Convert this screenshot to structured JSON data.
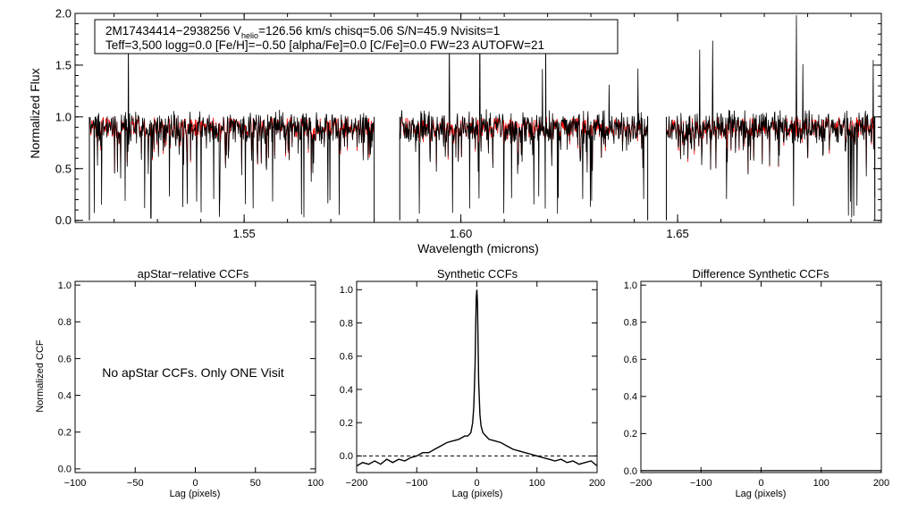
{
  "colors": {
    "observed": "#000000",
    "model": "#ff0000",
    "axis": "#000000",
    "background": "#ffffff"
  },
  "chart_data": [
    {
      "type": "line",
      "id": "spectrum",
      "xlabel": "Wavelength (microns)",
      "ylabel": "Normalized Flux",
      "xlim": [
        1.511,
        1.697
      ],
      "ylim": [
        -0.02,
        2.0
      ],
      "xticks": [
        1.55,
        1.6,
        1.65
      ],
      "xtick_labels": [
        "1.55",
        "1.60",
        "1.65"
      ],
      "yticks": [
        0.0,
        0.5,
        1.0,
        1.5,
        2.0
      ],
      "ytick_labels": [
        "0.0",
        "0.5",
        "1.0",
        "1.5",
        "2.0"
      ],
      "chips": [
        [
          1.5143,
          1.58
        ],
        [
          1.5859,
          1.6431
        ],
        [
          1.6474,
          1.6955
        ]
      ],
      "series": [
        {
          "name": "observed",
          "baseline": 0.9,
          "noise": 0.13
        },
        {
          "name": "model",
          "baseline": 0.9,
          "noise": 0.1
        }
      ],
      "info_line1_parts": {
        "star": "2M17434414−2938256",
        "v": "V",
        "v_sub": "helio",
        "rest": "=126.56 km/s  chisq=5.06  S/N=45.9  Nvisits=1"
      },
      "info_line2": "Teff=3,500 logg=0.0 [Fe/H]=−0.50 [alpha/Fe]=0.0 [C/Fe]=0.0 FW=23 AUTOFW=21"
    },
    {
      "type": "line",
      "id": "apstar_ccf",
      "title": "apStar−relative CCFs",
      "xlabel": "Lag (pixels)",
      "ylabel": "Normalized CCF",
      "xlim": [
        -100,
        100
      ],
      "ylim": [
        -0.02,
        1.02
      ],
      "xticks": [
        -100,
        -50,
        0,
        50,
        100
      ],
      "xtick_labels": [
        "−100",
        "−50",
        "0",
        "50",
        "100"
      ],
      "yticks": [
        0.0,
        0.2,
        0.4,
        0.6,
        0.8,
        1.0
      ],
      "ytick_labels": [
        "0.0",
        "0.2",
        "0.4",
        "0.6",
        "0.8",
        "1.0"
      ],
      "annotation": "No apStar CCFs.  Only ONE Visit"
    },
    {
      "type": "line",
      "id": "synthetic_ccf",
      "title": "Synthetic CCFs",
      "xlabel": "Lag (pixels)",
      "xlim": [
        -200,
        200
      ],
      "ylim": [
        -0.1,
        1.05
      ],
      "xticks": [
        -200,
        -100,
        0,
        100,
        200
      ],
      "xtick_labels": [
        "−200",
        "−100",
        "0",
        "100",
        "200"
      ],
      "yticks": [
        0.0,
        0.2,
        0.4,
        0.6,
        0.8,
        1.0
      ],
      "ytick_labels": [
        "0.0",
        "0.2",
        "0.4",
        "0.6",
        "0.8",
        "1.0"
      ],
      "reference_line": 0.0,
      "peak": {
        "x": 0,
        "y": 1.0
      },
      "x": [
        -200,
        -190,
        -180,
        -170,
        -160,
        -150,
        -140,
        -130,
        -120,
        -110,
        -100,
        -90,
        -80,
        -70,
        -60,
        -50,
        -40,
        -30,
        -20,
        -15,
        -10,
        -7,
        -5,
        -3,
        -2,
        -1,
        0,
        1,
        2,
        3,
        5,
        7,
        10,
        15,
        20,
        30,
        40,
        50,
        60,
        70,
        80,
        90,
        100,
        110,
        120,
        130,
        140,
        150,
        160,
        170,
        180,
        190,
        200
      ],
      "values": [
        -0.06,
        -0.04,
        -0.05,
        -0.03,
        -0.05,
        -0.02,
        -0.04,
        -0.02,
        -0.03,
        -0.01,
        0.0,
        0.02,
        0.02,
        0.04,
        0.06,
        0.08,
        0.09,
        0.1,
        0.12,
        0.12,
        0.14,
        0.2,
        0.3,
        0.55,
        0.78,
        0.95,
        1.0,
        0.92,
        0.7,
        0.45,
        0.25,
        0.18,
        0.14,
        0.12,
        0.1,
        0.09,
        0.08,
        0.06,
        0.04,
        0.03,
        0.02,
        0.01,
        0.0,
        -0.01,
        -0.02,
        -0.03,
        -0.02,
        -0.04,
        -0.03,
        -0.05,
        -0.04,
        -0.03,
        -0.06
      ]
    },
    {
      "type": "line",
      "id": "difference_ccf",
      "title": "Difference Synthetic CCFs",
      "xlabel": "Lag (pixels)",
      "xlim": [
        -200,
        200
      ],
      "ylim": [
        -0.01,
        1.02
      ],
      "xticks": [
        -200,
        -100,
        0,
        100,
        200
      ],
      "xtick_labels": [
        "−200",
        "−100",
        "0",
        "100",
        "200"
      ],
      "yticks": [
        0.0,
        0.2,
        0.4,
        0.6,
        0.8,
        1.0
      ],
      "ytick_labels": [
        "0.0",
        "0.2",
        "0.4",
        "0.6",
        "0.8",
        "1.0"
      ],
      "x": [
        -200,
        200
      ],
      "values": [
        0.0,
        0.0
      ]
    }
  ]
}
